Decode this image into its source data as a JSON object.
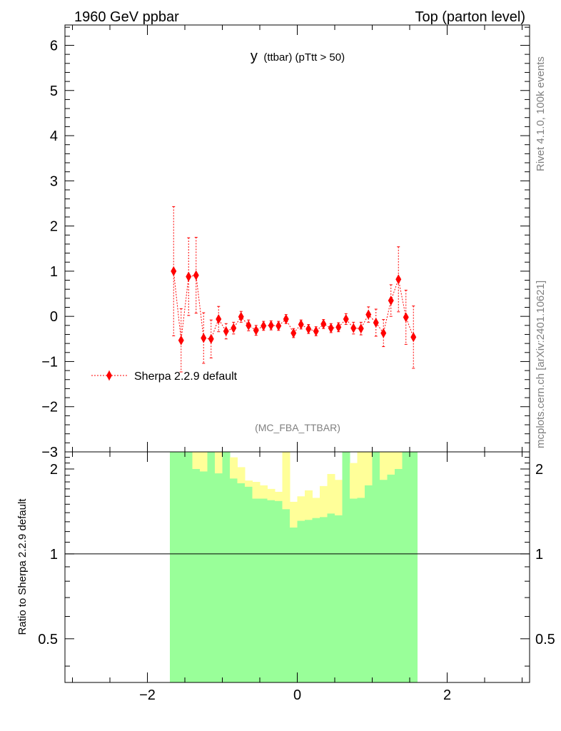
{
  "header": {
    "left": "1960 GeV ppbar",
    "right": "Top (parton level)"
  },
  "side_text": {
    "rivet": "Rivet 4.1.0,  100k events",
    "mcplots": "mcplots.cern.ch [arXiv:2401.10621]"
  },
  "colors": {
    "mc": "#ff0000",
    "band_inner": "#99ff99",
    "band_outer": "#ffff99",
    "axis": "#000000",
    "muted": "#808080"
  },
  "chart_data": [
    {
      "type": "scatter",
      "panel": "main",
      "title_main": "y",
      "title_sub": "(ttbar)  (pTtt > 50)",
      "analysis_label": "(MC_FBA_TTBAR)",
      "xlabel": "",
      "ylabel": "",
      "xlim": [
        -3.1,
        3.1
      ],
      "ylim": [
        -3.0,
        6.45
      ],
      "yticks": [
        -3,
        -2,
        -1,
        0,
        1,
        2,
        3,
        4,
        5,
        6
      ],
      "ytick_labels": [
        "−3",
        "−2",
        "−1",
        "0",
        "1",
        "2",
        "3",
        "4",
        "5",
        "6"
      ],
      "legend": "Sherpa 2.2.9 default",
      "legend_position": "middle-left",
      "series": [
        {
          "name": "Sherpa 2.2.9 default",
          "x": [
            -1.65,
            -1.55,
            -1.45,
            -1.35,
            -1.25,
            -1.15,
            -1.05,
            -0.95,
            -0.85,
            -0.75,
            -0.65,
            -0.55,
            -0.45,
            -0.35,
            -0.25,
            -0.15,
            -0.05,
            0.05,
            0.15,
            0.25,
            0.35,
            0.45,
            0.55,
            0.65,
            0.75,
            0.85,
            0.95,
            1.05,
            1.15,
            1.25,
            1.35,
            1.45,
            1.55
          ],
          "y": [
            1.0,
            -0.53,
            0.88,
            0.91,
            -0.48,
            -0.5,
            -0.06,
            -0.33,
            -0.26,
            -0.01,
            -0.2,
            -0.31,
            -0.21,
            -0.2,
            -0.21,
            -0.06,
            -0.37,
            -0.18,
            -0.28,
            -0.33,
            -0.17,
            -0.26,
            -0.24,
            -0.06,
            -0.26,
            -0.27,
            0.04,
            -0.14,
            -0.37,
            0.35,
            0.82,
            -0.02,
            -0.46
          ],
          "yerr": [
            1.43,
            0.7,
            0.86,
            0.84,
            0.56,
            0.42,
            0.28,
            0.17,
            0.13,
            0.12,
            0.12,
            0.11,
            0.1,
            0.1,
            0.1,
            0.1,
            0.1,
            0.1,
            0.1,
            0.1,
            0.1,
            0.1,
            0.1,
            0.12,
            0.13,
            0.14,
            0.17,
            0.3,
            0.3,
            0.35,
            0.72,
            0.6,
            0.69
          ]
        }
      ]
    },
    {
      "type": "area",
      "panel": "ratio",
      "ylabel": "Ratio to Sherpa 2.2.9 default",
      "xlim": [
        -3.1,
        3.1
      ],
      "ylim": [
        0.35,
        2.3
      ],
      "ytick_labels": [
        "0.5",
        "1",
        "2"
      ],
      "yticks": [
        0.5,
        1,
        2
      ],
      "xticks": [
        -2,
        0,
        2
      ],
      "xtick_labels": [
        "−2",
        "0",
        "2"
      ],
      "reference_line": 1,
      "bin_edges": [
        -1.7,
        -1.6,
        -1.5,
        -1.4,
        -1.3,
        -1.2,
        -1.1,
        -1.0,
        -0.9,
        -0.8,
        -0.7,
        -0.6,
        -0.5,
        -0.4,
        -0.3,
        -0.2,
        -0.1,
        0.0,
        0.1,
        0.2,
        0.3,
        0.4,
        0.5,
        0.6,
        0.7,
        0.8,
        0.9,
        1.0,
        1.1,
        1.2,
        1.3,
        1.4,
        1.5,
        1.6
      ],
      "inner_band": {
        "upper": [
          2.3,
          2.3,
          2.3,
          2.0,
          1.96,
          2.3,
          1.93,
          2.3,
          1.85,
          1.78,
          1.73,
          1.57,
          1.57,
          1.55,
          1.54,
          1.44,
          1.24,
          1.31,
          1.32,
          1.34,
          1.35,
          1.39,
          1.37,
          2.3,
          1.57,
          1.58,
          1.75,
          2.3,
          1.83,
          1.91,
          2.0,
          2.3,
          2.3
        ],
        "lower": [
          0.35,
          0.35,
          0.35,
          0.35,
          0.35,
          0.35,
          0.35,
          0.35,
          0.35,
          0.35,
          0.35,
          0.35,
          0.35,
          0.35,
          0.35,
          0.35,
          0.35,
          0.35,
          0.35,
          0.35,
          0.35,
          0.35,
          0.35,
          0.35,
          0.35,
          0.35,
          0.35,
          0.35,
          0.35,
          0.35,
          0.35,
          0.35,
          0.35
        ]
      },
      "outer_band": {
        "upper": [
          2.3,
          2.3,
          2.3,
          2.3,
          2.3,
          2.3,
          2.3,
          2.17,
          2.2,
          2.03,
          1.82,
          1.8,
          1.75,
          1.7,
          1.66,
          2.3,
          1.53,
          1.6,
          1.68,
          1.58,
          1.74,
          1.92,
          1.83,
          2.3,
          2.1,
          2.3,
          2.3,
          2.3,
          2.3,
          2.3,
          2.3,
          2.3,
          2.3
        ],
        "lower": [
          0.35,
          0.35,
          0.35,
          0.35,
          0.35,
          0.35,
          0.35,
          0.35,
          0.35,
          0.35,
          0.35,
          0.35,
          0.35,
          0.35,
          0.35,
          0.35,
          0.35,
          0.35,
          0.35,
          0.35,
          0.35,
          0.35,
          0.35,
          0.35,
          0.35,
          0.35,
          0.35,
          0.35,
          0.35,
          0.35,
          0.35,
          0.35,
          0.35
        ]
      }
    }
  ]
}
